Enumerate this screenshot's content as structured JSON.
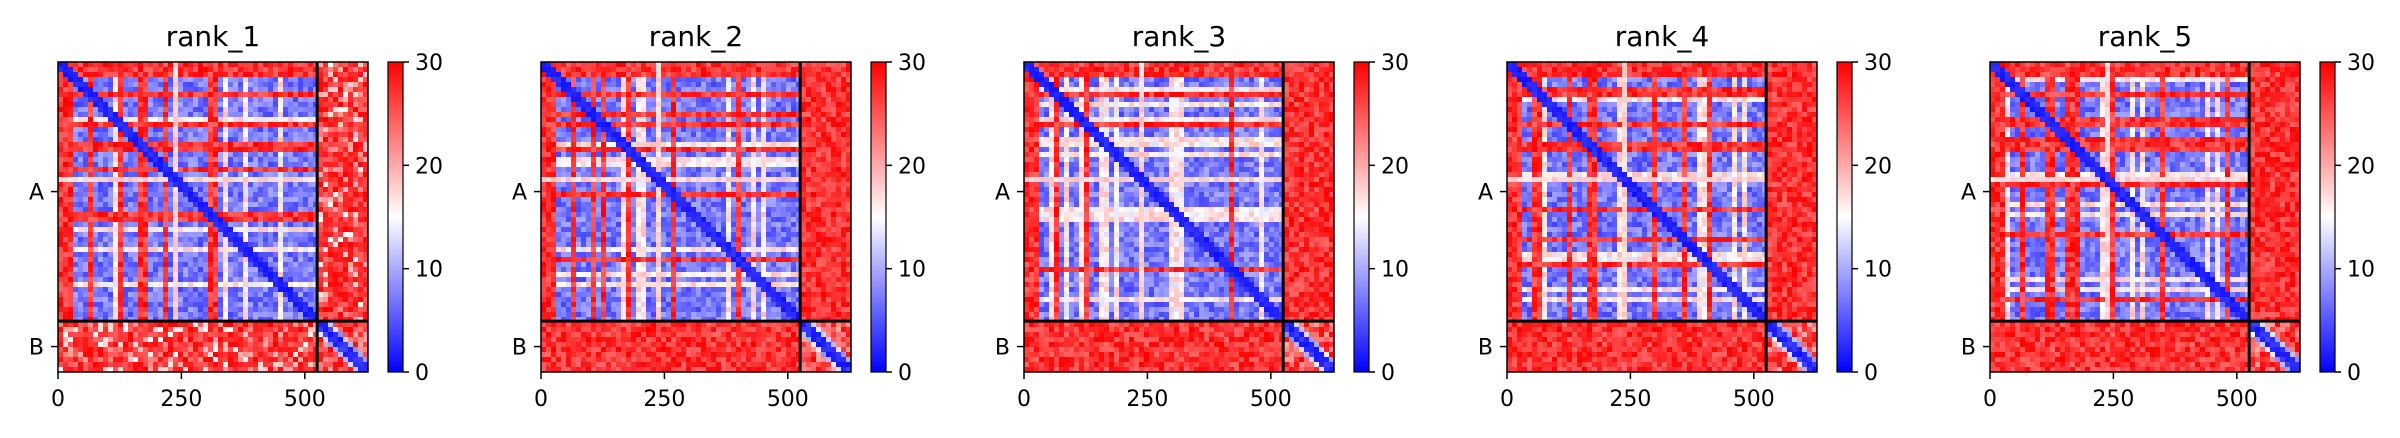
{
  "chart_data": [
    {
      "type": "heatmap",
      "title": "rank_1",
      "x_ticks": [
        0,
        250,
        500
      ],
      "xlim": [
        0,
        628
      ],
      "ylim": [
        628,
        0
      ],
      "chain_boundary": 525,
      "y_tick_labels": [
        "A",
        "B"
      ],
      "colorbar": {
        "min": 0,
        "max": 30,
        "ticks": [
          0,
          10,
          20,
          30
        ],
        "colormap": "bwr"
      },
      "offdiag_pattern": "lowBoth",
      "seed": 11
    },
    {
      "type": "heatmap",
      "title": "rank_2",
      "x_ticks": [
        0,
        250,
        500
      ],
      "xlim": [
        0,
        628
      ],
      "ylim": [
        628,
        0
      ],
      "chain_boundary": 525,
      "y_tick_labels": [
        "A",
        "B"
      ],
      "colorbar": {
        "min": 0,
        "max": 30,
        "ticks": [
          0,
          10,
          20,
          30
        ],
        "colormap": "bwr"
      },
      "offdiag_pattern": "high",
      "seed": 23
    },
    {
      "type": "heatmap",
      "title": "rank_3",
      "x_ticks": [
        0,
        250,
        500
      ],
      "xlim": [
        0,
        628
      ],
      "ylim": [
        628,
        0
      ],
      "chain_boundary": 525,
      "y_tick_labels": [
        "A",
        "B"
      ],
      "colorbar": {
        "min": 0,
        "max": 30,
        "ticks": [
          0,
          10,
          20,
          30
        ],
        "colormap": "bwr"
      },
      "offdiag_pattern": "high",
      "seed": 37
    },
    {
      "type": "heatmap",
      "title": "rank_4",
      "x_ticks": [
        0,
        250,
        500
      ],
      "xlim": [
        0,
        628
      ],
      "ylim": [
        628,
        0
      ],
      "chain_boundary": 525,
      "y_tick_labels": [
        "A",
        "B"
      ],
      "colorbar": {
        "min": 0,
        "max": 30,
        "ticks": [
          0,
          10,
          20,
          30
        ],
        "colormap": "bwr"
      },
      "offdiag_pattern": "high",
      "seed": 41
    },
    {
      "type": "heatmap",
      "title": "rank_5",
      "x_ticks": [
        0,
        250,
        500
      ],
      "xlim": [
        0,
        628
      ],
      "ylim": [
        628,
        0
      ],
      "chain_boundary": 525,
      "y_tick_labels": [
        "A",
        "B"
      ],
      "colorbar": {
        "min": 0,
        "max": 30,
        "ticks": [
          0,
          10,
          20,
          30
        ],
        "colormap": "bwr"
      },
      "offdiag_pattern": "high",
      "seed": 53
    }
  ]
}
